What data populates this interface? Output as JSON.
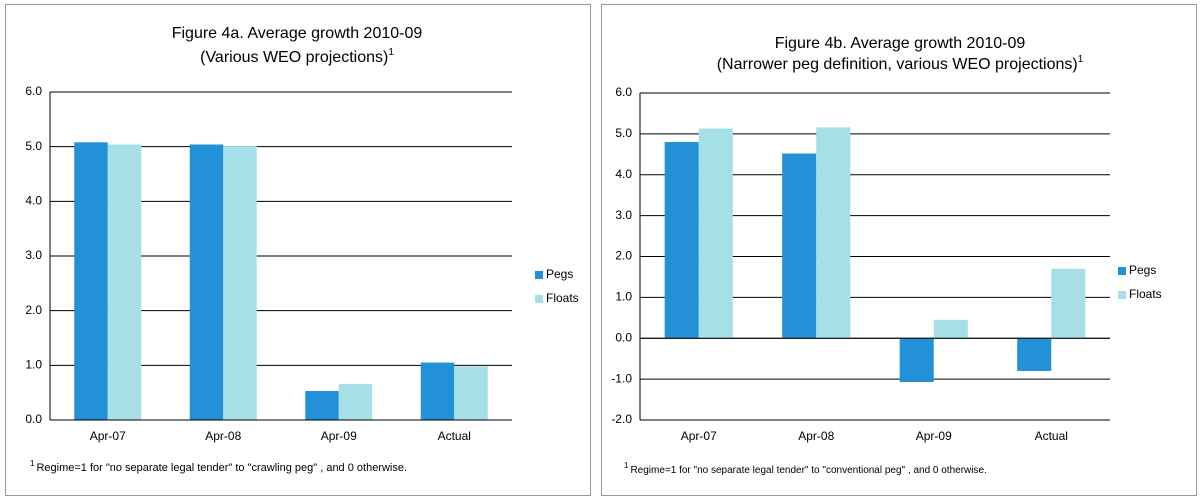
{
  "chart_data": [
    {
      "type": "bar",
      "title": "Figure 4a. Average growth 2010-09",
      "subtitle": "(Various WEO projections)",
      "subtitle_note": "1",
      "categories": [
        "Apr-07",
        "Apr-08",
        "Apr-09",
        "Actual"
      ],
      "series": [
        {
          "name": "Pegs",
          "color": "#2391d7",
          "values": [
            5.08,
            5.04,
            0.53,
            1.05
          ]
        },
        {
          "name": "Floats",
          "color": "#a6dfe8",
          "values": [
            5.04,
            5.01,
            0.66,
            0.98
          ]
        }
      ],
      "ylim": [
        0,
        6
      ],
      "yticks": [
        {
          "value": 0,
          "label": "0.0"
        },
        {
          "value": 1,
          "label": "1.0"
        },
        {
          "value": 2,
          "label": "2.0"
        },
        {
          "value": 3,
          "label": "3.0"
        },
        {
          "value": 4,
          "label": "4.0"
        },
        {
          "value": 5,
          "label": "5.0"
        },
        {
          "value": 6,
          "label": "6.0"
        }
      ],
      "grid": true,
      "legend": "right",
      "footnote_mark": "1",
      "footnote": "Regime=1 for \"no separate legal tender\" to \"crawling peg\" , and 0 otherwise."
    },
    {
      "type": "bar",
      "title": "Figure 4b. Average growth 2010-09",
      "subtitle": "(Narrower peg definition, various WEO projections)",
      "subtitle_note": "1",
      "categories": [
        "Apr-07",
        "Apr-08",
        "Apr-09",
        "Actual"
      ],
      "series": [
        {
          "name": "Pegs",
          "color": "#2391d7",
          "values": [
            4.8,
            4.52,
            -1.07,
            -0.8
          ]
        },
        {
          "name": "Floats",
          "color": "#a6dfe8",
          "values": [
            5.13,
            5.16,
            0.45,
            1.7
          ]
        }
      ],
      "ylim": [
        -2,
        6
      ],
      "yticks": [
        {
          "value": -2,
          "label": "-2.0"
        },
        {
          "value": -1,
          "label": "-1.0"
        },
        {
          "value": 0,
          "label": "0.0"
        },
        {
          "value": 1,
          "label": "1.0"
        },
        {
          "value": 2,
          "label": "2.0"
        },
        {
          "value": 3,
          "label": "3.0"
        },
        {
          "value": 4,
          "label": "4.0"
        },
        {
          "value": 5,
          "label": "5.0"
        },
        {
          "value": 6,
          "label": "6.0"
        }
      ],
      "grid": true,
      "legend": "right",
      "footnote_mark": "1",
      "footnote": "Regime=1 for \"no separate legal tender\" to \"conventional peg\" , and 0 otherwise."
    }
  ]
}
